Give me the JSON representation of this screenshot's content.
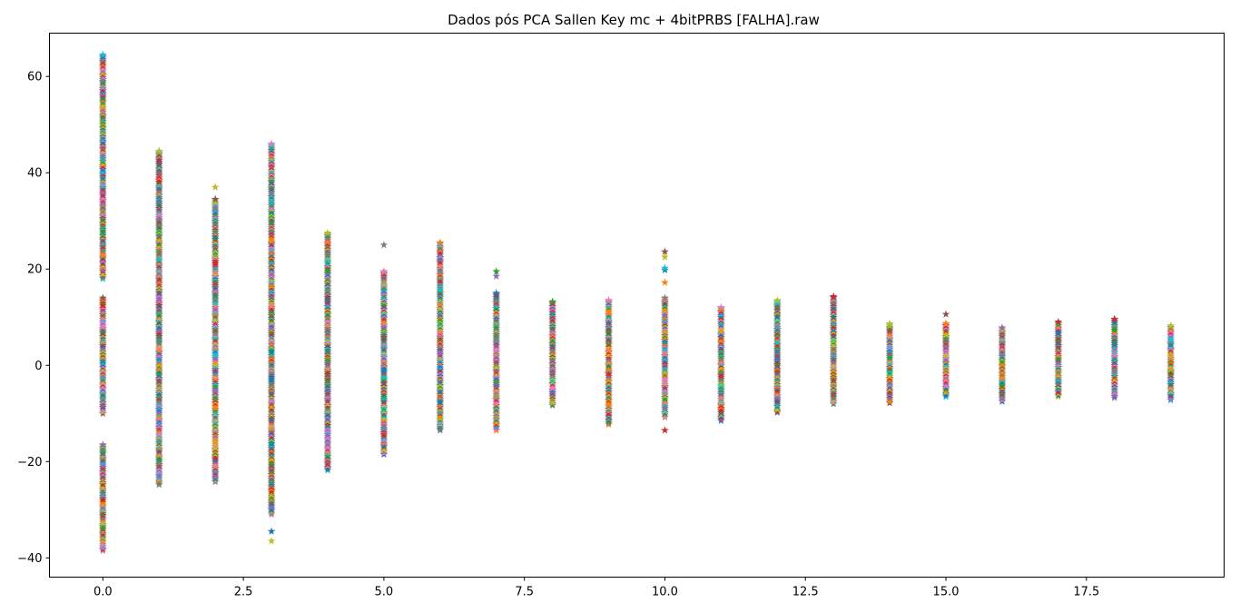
{
  "chart_data": {
    "type": "scatter",
    "title": "Dados pós PCA Sallen Key mc + 4bitPRBS [FALHA].raw",
    "xlabel": "",
    "ylabel": "",
    "xlim": [
      -0.95,
      19.95
    ],
    "ylim": [
      -44.0,
      69.0
    ],
    "x_ticks": [
      0.0,
      2.5,
      5.0,
      7.5,
      10.0,
      12.5,
      15.0,
      17.5
    ],
    "x_tick_labels": [
      "0.0",
      "2.5",
      "5.0",
      "7.5",
      "10.0",
      "12.5",
      "15.0",
      "17.5"
    ],
    "y_ticks": [
      -40,
      -20,
      0,
      20,
      40,
      60
    ],
    "y_tick_labels": [
      "−40",
      "−20",
      "0",
      "20",
      "40",
      "60"
    ],
    "marker": "star",
    "grid": false,
    "legend": "none",
    "palette": [
      "#1f77b4",
      "#ff7f0e",
      "#2ca02c",
      "#d62728",
      "#9467bd",
      "#8c564b",
      "#e377c2",
      "#7f7f7f",
      "#bcbd22",
      "#17becf"
    ],
    "columns": [
      {
        "x": 0,
        "segments": [
          [
            -38.5,
            -16.5
          ],
          [
            -10,
            14
          ],
          [
            18,
            64.5
          ]
        ],
        "outliers": []
      },
      {
        "x": 1,
        "segments": [
          [
            -24.8,
            44.5
          ]
        ],
        "outliers": []
      },
      {
        "x": 2,
        "segments": [
          [
            -24.2,
            34.5
          ]
        ],
        "outliers": [
          37
        ]
      },
      {
        "x": 3,
        "segments": [
          [
            -31,
            46
          ]
        ],
        "outliers": [
          -34.5,
          -36.5
        ]
      },
      {
        "x": 4,
        "segments": [
          [
            -21.8,
            27.5
          ]
        ],
        "outliers": []
      },
      {
        "x": 5,
        "segments": [
          [
            -18.5,
            19.5
          ]
        ],
        "outliers": [
          25
        ]
      },
      {
        "x": 6,
        "segments": [
          [
            -13.5,
            25.5
          ]
        ],
        "outliers": []
      },
      {
        "x": 7,
        "segments": [
          [
            -13.5,
            15
          ]
        ],
        "outliers": [
          18.5,
          19.5
        ]
      },
      {
        "x": 8,
        "segments": [
          [
            -8.3,
            13.2
          ]
        ],
        "outliers": []
      },
      {
        "x": 9,
        "segments": [
          [
            -12.3,
            13.5
          ]
        ],
        "outliers": []
      },
      {
        "x": 10,
        "segments": [
          [
            -10.8,
            14
          ]
        ],
        "outliers": [
          -13.5,
          17.2,
          19.8,
          20.2,
          22.5,
          23.6
        ]
      },
      {
        "x": 11,
        "segments": [
          [
            -11.5,
            12
          ]
        ],
        "outliers": []
      },
      {
        "x": 12,
        "segments": [
          [
            -9.8,
            13.5
          ]
        ],
        "outliers": []
      },
      {
        "x": 13,
        "segments": [
          [
            -8,
            14.3
          ]
        ],
        "outliers": []
      },
      {
        "x": 14,
        "segments": [
          [
            -7.8,
            8.6
          ]
        ],
        "outliers": []
      },
      {
        "x": 15,
        "segments": [
          [
            -6.5,
            8.7
          ]
        ],
        "outliers": [
          10.6
        ]
      },
      {
        "x": 16,
        "segments": [
          [
            -7.5,
            7.8
          ]
        ],
        "outliers": []
      },
      {
        "x": 17,
        "segments": [
          [
            -6.5,
            9
          ]
        ],
        "outliers": []
      },
      {
        "x": 18,
        "segments": [
          [
            -6.8,
            9.6
          ]
        ],
        "outliers": []
      },
      {
        "x": 19,
        "segments": [
          [
            -7.2,
            8.2
          ]
        ],
        "outliers": []
      }
    ]
  }
}
